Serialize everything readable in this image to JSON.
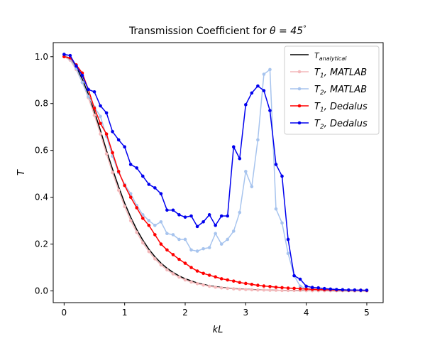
{
  "chart_data": {
    "type": "line",
    "title_prefix": "Transmission Coefficient for ",
    "title_symbol": "θ = 45",
    "title_suffix": "°",
    "xlabel": "kL",
    "ylabel": "T",
    "xlim": [
      -0.18,
      5.27
    ],
    "ylim": [
      -0.05,
      1.06
    ],
    "xticks": [
      0,
      1,
      2,
      3,
      4,
      5
    ],
    "xtick_labels": [
      "0",
      "1",
      "2",
      "3",
      "4",
      "5"
    ],
    "yticks": [
      0.0,
      0.2,
      0.4,
      0.6,
      0.8,
      1.0
    ],
    "ytick_labels": [
      "0.0",
      "0.2",
      "0.4",
      "0.6",
      "0.8",
      "1.0"
    ],
    "grid": false,
    "legend_position": "top-right",
    "series": [
      {
        "name": "T_analytical",
        "label_main": "T",
        "label_sub": "analytical",
        "color": "#000000",
        "markers": false,
        "x": [
          0.0,
          0.1,
          0.2,
          0.3,
          0.4,
          0.5,
          0.6,
          0.7,
          0.8,
          0.9,
          1.0,
          1.1,
          1.2,
          1.3,
          1.4,
          1.5,
          1.6,
          1.7,
          1.8,
          1.9,
          2.0,
          2.2,
          2.4,
          2.6,
          2.8,
          3.0,
          3.3,
          3.6,
          4.0,
          4.5,
          5.0
        ],
        "y": [
          1.0,
          0.99,
          0.955,
          0.905,
          0.84,
          0.765,
          0.685,
          0.6,
          0.52,
          0.445,
          0.375,
          0.315,
          0.262,
          0.217,
          0.178,
          0.146,
          0.119,
          0.097,
          0.079,
          0.064,
          0.052,
          0.034,
          0.022,
          0.015,
          0.01,
          0.007,
          0.004,
          0.002,
          0.001,
          0.0005,
          0.0002
        ]
      },
      {
        "name": "T1, MATLAB",
        "label_main": "T",
        "label_sub": "1",
        "label_rest": ", MATLAB",
        "color": "#f4b9bb",
        "markers": true,
        "x": [
          0.0,
          0.1,
          0.2,
          0.3,
          0.4,
          0.5,
          0.6,
          0.7,
          0.8,
          0.9,
          1.0,
          1.1,
          1.2,
          1.3,
          1.4,
          1.5,
          1.6,
          1.7,
          1.8,
          1.9,
          2.0,
          2.1,
          2.2,
          2.3,
          2.4,
          2.5,
          2.6,
          2.7,
          2.8,
          2.9,
          3.0,
          3.1,
          3.2,
          3.3,
          3.4,
          3.5,
          3.6,
          3.7,
          3.8,
          3.9,
          4.0,
          4.1,
          4.2,
          4.3,
          4.4,
          4.5,
          4.6,
          4.7,
          4.8,
          4.9,
          5.0
        ],
        "y": [
          1.0,
          0.985,
          0.945,
          0.89,
          0.825,
          0.75,
          0.67,
          0.585,
          0.505,
          0.43,
          0.36,
          0.3,
          0.25,
          0.205,
          0.168,
          0.137,
          0.111,
          0.09,
          0.073,
          0.059,
          0.047,
          0.038,
          0.031,
          0.025,
          0.02,
          0.016,
          0.013,
          0.011,
          0.009,
          0.007,
          0.006,
          0.005,
          0.004,
          0.004,
          0.003,
          0.003,
          0.002,
          0.002,
          0.002,
          0.002,
          0.001,
          0.001,
          0.001,
          0.001,
          0.001,
          0.001,
          0.001,
          0.001,
          0.0,
          0.0,
          0.0
        ]
      },
      {
        "name": "T2, MATLAB",
        "label_main": "T",
        "label_sub": "2",
        "label_rest": ", MATLAB",
        "color": "#a7c4ee",
        "markers": true,
        "x": [
          0.0,
          0.1,
          0.2,
          0.3,
          0.4,
          0.5,
          0.6,
          0.7,
          0.8,
          0.9,
          1.0,
          1.1,
          1.2,
          1.3,
          1.4,
          1.5,
          1.6,
          1.7,
          1.8,
          1.9,
          2.0,
          2.1,
          2.2,
          2.3,
          2.4,
          2.5,
          2.6,
          2.7,
          2.8,
          2.9,
          3.0,
          3.1,
          3.2,
          3.3,
          3.4,
          3.5,
          3.6,
          3.7,
          3.8,
          3.9,
          4.0,
          4.1,
          4.2,
          4.3,
          4.4,
          4.5,
          4.6,
          4.7,
          4.8,
          4.9,
          5.0
        ],
        "y": [
          1.01,
          0.99,
          0.95,
          0.89,
          0.83,
          0.785,
          0.745,
          0.66,
          0.575,
          0.505,
          0.455,
          0.415,
          0.365,
          0.325,
          0.3,
          0.28,
          0.295,
          0.245,
          0.24,
          0.22,
          0.22,
          0.175,
          0.17,
          0.18,
          0.185,
          0.245,
          0.2,
          0.22,
          0.255,
          0.335,
          0.51,
          0.445,
          0.645,
          0.925,
          0.945,
          0.35,
          0.29,
          0.16,
          0.065,
          0.02,
          0.01,
          0.008,
          0.006,
          0.005,
          0.004,
          0.004,
          0.003,
          0.003,
          0.002,
          0.002,
          0.002
        ]
      },
      {
        "name": "T1, Dedalus",
        "label_main": "T",
        "label_sub": "1",
        "label_rest": ", Dedalus",
        "color": "#ff0000",
        "markers": true,
        "x": [
          0.0,
          0.1,
          0.2,
          0.3,
          0.4,
          0.5,
          0.6,
          0.7,
          0.8,
          0.9,
          1.0,
          1.1,
          1.2,
          1.3,
          1.4,
          1.5,
          1.6,
          1.7,
          1.8,
          1.9,
          2.0,
          2.1,
          2.2,
          2.3,
          2.4,
          2.5,
          2.6,
          2.7,
          2.8,
          2.9,
          3.0,
          3.1,
          3.2,
          3.3,
          3.4,
          3.5,
          3.6,
          3.7,
          3.8,
          3.9,
          4.0,
          4.1,
          4.2,
          4.3,
          4.4,
          4.5,
          4.6,
          4.7,
          4.8,
          4.9,
          5.0
        ],
        "y": [
          1.0,
          0.995,
          0.965,
          0.93,
          0.86,
          0.78,
          0.715,
          0.67,
          0.59,
          0.51,
          0.45,
          0.4,
          0.355,
          0.31,
          0.28,
          0.24,
          0.2,
          0.175,
          0.155,
          0.135,
          0.118,
          0.1,
          0.085,
          0.075,
          0.067,
          0.06,
          0.052,
          0.047,
          0.042,
          0.036,
          0.032,
          0.028,
          0.024,
          0.021,
          0.019,
          0.016,
          0.014,
          0.012,
          0.011,
          0.009,
          0.008,
          0.007,
          0.006,
          0.005,
          0.005,
          0.004,
          0.004,
          0.003,
          0.003,
          0.003,
          0.002
        ]
      },
      {
        "name": "T2, Dedalus",
        "label_main": "T",
        "label_sub": "2",
        "label_rest": ", Dedalus",
        "color": "#0000ee",
        "markers": true,
        "x": [
          0.0,
          0.1,
          0.2,
          0.3,
          0.4,
          0.5,
          0.6,
          0.7,
          0.8,
          0.9,
          1.0,
          1.1,
          1.2,
          1.3,
          1.4,
          1.5,
          1.6,
          1.7,
          1.8,
          1.9,
          2.0,
          2.1,
          2.2,
          2.3,
          2.4,
          2.5,
          2.6,
          2.7,
          2.8,
          2.9,
          3.0,
          3.1,
          3.2,
          3.3,
          3.4,
          3.5,
          3.6,
          3.7,
          3.8,
          3.9,
          4.0,
          4.1,
          4.2,
          4.3,
          4.4,
          4.5,
          4.6,
          4.7,
          4.8,
          4.9,
          5.0
        ],
        "y": [
          1.01,
          1.005,
          0.96,
          0.92,
          0.86,
          0.85,
          0.79,
          0.76,
          0.68,
          0.645,
          0.615,
          0.54,
          0.525,
          0.49,
          0.455,
          0.44,
          0.415,
          0.345,
          0.345,
          0.325,
          0.315,
          0.32,
          0.275,
          0.295,
          0.325,
          0.28,
          0.32,
          0.32,
          0.615,
          0.565,
          0.795,
          0.845,
          0.875,
          0.855,
          0.77,
          0.54,
          0.49,
          0.22,
          0.065,
          0.05,
          0.02,
          0.015,
          0.013,
          0.01,
          0.008,
          0.006,
          0.005,
          0.004,
          0.004,
          0.003,
          0.003
        ]
      }
    ]
  }
}
